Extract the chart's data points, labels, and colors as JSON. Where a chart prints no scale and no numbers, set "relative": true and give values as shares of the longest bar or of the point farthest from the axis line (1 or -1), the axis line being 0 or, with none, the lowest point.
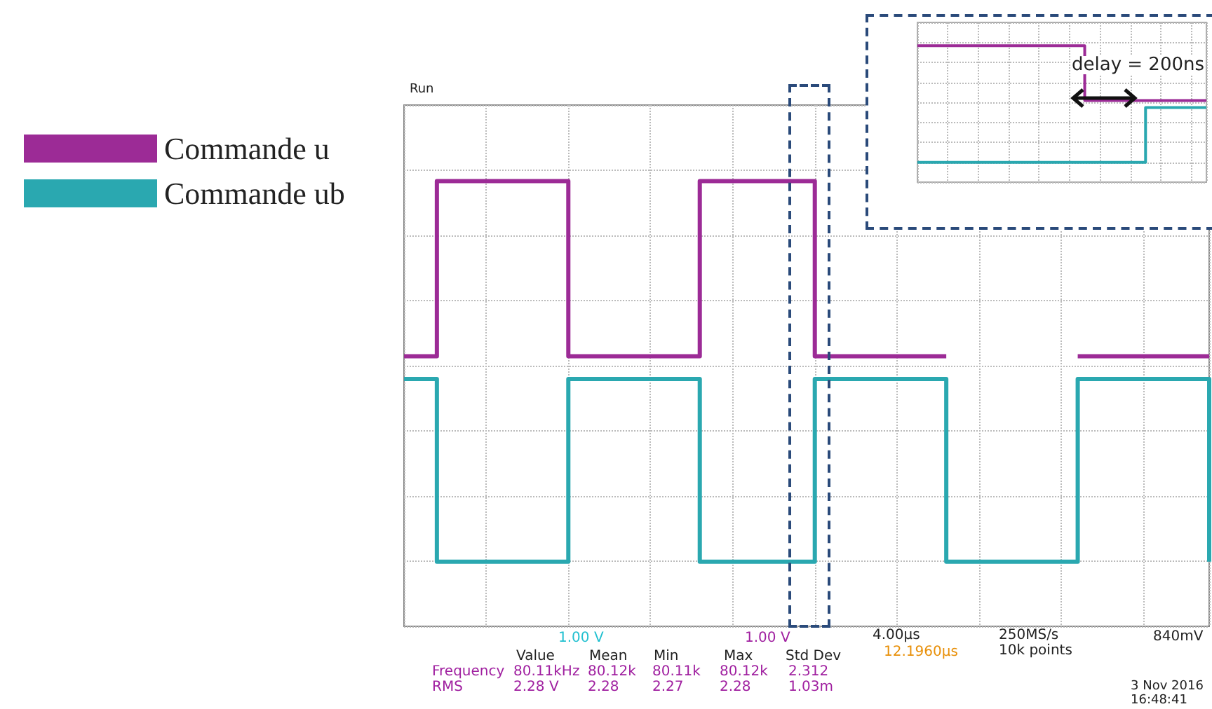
{
  "chart_data": [
    {
      "type": "step",
      "relative": true,
      "grid": true,
      "legend": "left",
      "line_style": "solid",
      "marker": "none",
      "categories": [
        null,
        null,
        null,
        null,
        null,
        null,
        null,
        null,
        null,
        null,
        null,
        null,
        null,
        null,
        null,
        null,
        null,
        null,
        null,
        null,
        null,
        null,
        null,
        null,
        null,
        null,
        null,
        null,
        null,
        null,
        null,
        null,
        null,
        null,
        null,
        null,
        null,
        null,
        null,
        null,
        null,
        null,
        null,
        null,
        null,
        null,
        null,
        null,
        null,
        null
      ],
      "series": [
        {
          "name": "Commande u",
          "color": "#9c2b96",
          "values": [
            0.54,
            0.54,
            1,
            1,
            1,
            1,
            1,
            1,
            1,
            1,
            0.54,
            0.54,
            0.54,
            0.54,
            0.54,
            0.54,
            0.54,
            0.54,
            1,
            1,
            1,
            1,
            1,
            1,
            1,
            0.54,
            0.54,
            0.54,
            0.54,
            0.54,
            0.54,
            0.54,
            0.54,
            null,
            null,
            null,
            null,
            null,
            null,
            null,
            null,
            0.54,
            0.54,
            0.54,
            0.54,
            0.54,
            0.54,
            0.54,
            0.54,
            0.54
          ]
        },
        {
          "name": "Commande ub",
          "color": "#2aa8b0",
          "values": [
            0.48,
            0.48,
            0,
            0,
            0,
            0,
            0,
            0,
            0,
            0,
            0.48,
            0.48,
            0.48,
            0.48,
            0.48,
            0.48,
            0.48,
            0.48,
            0,
            0,
            0,
            0,
            0,
            0,
            0,
            0.48,
            0.48,
            0.48,
            0.48,
            0.48,
            0.48,
            0.48,
            0.48,
            0,
            0,
            0,
            0,
            0,
            0,
            0,
            0,
            0.48,
            0.48,
            0.48,
            0.48,
            0.48,
            0.48,
            0.48,
            0.48,
            0
          ]
        }
      ],
      "annotations": [
        "Run",
        "1.00 V",
        "1.00 V",
        "4.00µs",
        "12.1960µs",
        "250MS/s",
        "10k points",
        "840mV",
        "Value",
        "Mean",
        "Min",
        "Max",
        "Std Dev",
        "Frequency",
        "80.11kHz",
        "80.12k",
        "80.11k",
        "80.12k",
        "2.312",
        "RMS",
        "2.28 V",
        "2.28",
        "2.27",
        "2.28",
        "1.03m",
        "3 Nov 2016",
        "16:48:41"
      ]
    },
    {
      "type": "step",
      "relative": true,
      "grid": true,
      "line_style": "solid",
      "marker": "none",
      "categories": [
        null,
        null,
        null,
        null,
        null,
        null,
        null,
        null,
        null,
        null,
        null,
        null,
        null,
        null,
        null,
        null,
        null,
        null,
        null,
        null
      ],
      "series": [
        {
          "color": "#9c2b96",
          "values": [
            1,
            1,
            1,
            1,
            1,
            1,
            1,
            1,
            1,
            1,
            1,
            0.53,
            0.53,
            0.53,
            0.53,
            0.53,
            0.53,
            0.53,
            0.53,
            0.53
          ]
        },
        {
          "color": "#2aa8b0",
          "values": [
            0,
            0,
            0,
            0,
            0,
            0,
            0,
            0,
            0,
            0,
            0,
            0,
            0,
            0,
            0,
            0.47,
            0.47,
            0.47,
            0.47,
            0.47
          ]
        }
      ],
      "annotations": [
        "delay = 200ns"
      ]
    }
  ]
}
